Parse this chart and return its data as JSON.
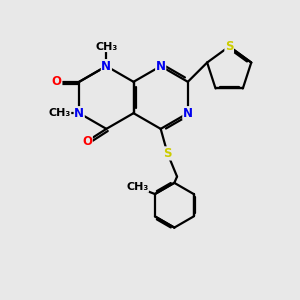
{
  "background_color": "#e8e8e8",
  "bond_color": "#000000",
  "bond_width": 1.6,
  "font_size": 8.5,
  "atom_colors": {
    "N": "#0000ee",
    "O": "#ff0000",
    "S": "#cccc00",
    "C": "#000000"
  },
  "fig_width": 3.0,
  "fig_height": 3.0,
  "dpi": 100,
  "xlim": [
    0,
    10
  ],
  "ylim": [
    -1,
    10
  ]
}
